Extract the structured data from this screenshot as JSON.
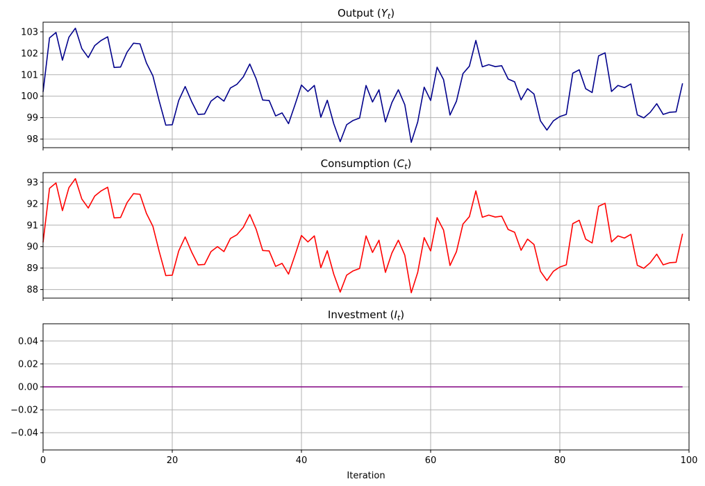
{
  "chart_data": [
    {
      "type": "line",
      "title": "Output",
      "title_var": "Y",
      "title_sub": "t",
      "ylim": [
        97.6,
        103.45
      ],
      "yticks": [
        98,
        99,
        100,
        101,
        102,
        103
      ],
      "ytick_labels": [
        "98",
        "99",
        "100",
        "101",
        "102",
        "103"
      ],
      "series": [
        {
          "name": "Output (Y_t)",
          "color": "#00008b",
          "values": [
            100.2,
            102.72,
            102.97,
            101.68,
            102.75,
            103.17,
            102.22,
            101.8,
            102.36,
            102.6,
            102.77,
            101.34,
            101.36,
            102.05,
            102.47,
            102.44,
            101.55,
            100.95,
            99.75,
            98.65,
            98.67,
            99.8,
            100.45,
            99.75,
            99.15,
            99.17,
            99.77,
            100,
            99.77,
            100.38,
            100.55,
            100.9,
            101.5,
            100.8,
            99.82,
            99.8,
            99.08,
            99.22,
            98.72,
            99.6,
            100.52,
            100.22,
            100.5,
            99.02,
            99.81,
            98.72,
            97.88,
            98.67,
            98.87,
            98.98,
            100.5,
            99.73,
            100.3,
            98.8,
            99.7,
            100.3,
            99.6,
            97.85,
            98.8,
            100.42,
            99.8,
            101.35,
            100.77,
            99.12,
            99.77,
            101.05,
            101.4,
            102.6,
            101.37,
            101.47,
            101.38,
            101.42,
            100.8,
            100.67,
            99.83,
            100.35,
            100.1,
            98.85,
            98.42,
            98.85,
            99.05,
            99.15,
            101.07,
            101.23,
            100.35,
            100.17,
            101.88,
            102.02,
            100.22,
            100.5,
            100.4,
            100.57,
            99.13,
            98.99,
            99.25,
            99.65,
            99.15,
            99.25,
            99.27,
            100.6
          ]
        }
      ]
    },
    {
      "type": "line",
      "title": "Consumption",
      "title_var": "C",
      "title_sub": "t",
      "ylim": [
        87.6,
        93.45
      ],
      "yticks": [
        88,
        89,
        90,
        91,
        92,
        93
      ],
      "ytick_labels": [
        "88",
        "89",
        "90",
        "91",
        "92",
        "93"
      ],
      "series": [
        {
          "name": "Consumption (C_t)",
          "color": "#ff0000",
          "values": [
            90.2,
            92.72,
            92.97,
            91.68,
            92.75,
            93.17,
            92.22,
            91.8,
            92.36,
            92.6,
            92.77,
            91.34,
            91.36,
            92.05,
            92.47,
            92.44,
            91.55,
            90.95,
            89.75,
            88.65,
            88.67,
            89.8,
            90.45,
            89.75,
            89.15,
            89.17,
            89.77,
            90,
            89.77,
            90.38,
            90.55,
            90.9,
            91.5,
            90.8,
            89.82,
            89.8,
            89.08,
            89.22,
            88.72,
            89.6,
            90.52,
            90.22,
            90.5,
            89.02,
            89.81,
            88.72,
            87.88,
            88.67,
            88.87,
            88.98,
            90.5,
            89.73,
            90.3,
            88.8,
            89.7,
            90.3,
            89.6,
            87.85,
            88.8,
            90.42,
            89.8,
            91.35,
            90.77,
            89.12,
            89.77,
            91.05,
            91.4,
            92.6,
            91.37,
            91.47,
            91.38,
            91.42,
            90.8,
            90.67,
            89.83,
            90.35,
            90.1,
            88.85,
            88.42,
            88.85,
            89.05,
            89.15,
            91.07,
            91.23,
            90.35,
            90.17,
            91.88,
            92.02,
            90.22,
            90.5,
            90.4,
            90.57,
            89.13,
            88.99,
            89.25,
            89.65,
            89.15,
            89.25,
            89.27,
            90.6
          ]
        }
      ]
    },
    {
      "type": "line",
      "title": "Investment",
      "title_var": "I",
      "title_sub": "t",
      "ylim": [
        -0.055,
        0.055
      ],
      "yticks": [
        0.04,
        0.02,
        0.0,
        -0.02,
        -0.04
      ],
      "ytick_labels": [
        "0.04",
        "0.02",
        "0.00",
        "−0.02",
        "−0.04"
      ],
      "series": [
        {
          "name": "Investment (I_t)",
          "color": "#800080",
          "values": [
            0,
            0,
            0,
            0,
            0,
            0,
            0,
            0,
            0,
            0,
            0,
            0,
            0,
            0,
            0,
            0,
            0,
            0,
            0,
            0,
            0,
            0,
            0,
            0,
            0,
            0,
            0,
            0,
            0,
            0,
            0,
            0,
            0,
            0,
            0,
            0,
            0,
            0,
            0,
            0,
            0,
            0,
            0,
            0,
            0,
            0,
            0,
            0,
            0,
            0,
            0,
            0,
            0,
            0,
            0,
            0,
            0,
            0,
            0,
            0,
            0,
            0,
            0,
            0,
            0,
            0,
            0,
            0,
            0,
            0,
            0,
            0,
            0,
            0,
            0,
            0,
            0,
            0,
            0,
            0,
            0,
            0,
            0,
            0,
            0,
            0,
            0,
            0,
            0,
            0,
            0,
            0,
            0,
            0,
            0,
            0,
            0,
            0,
            0,
            0
          ]
        }
      ]
    }
  ],
  "shared_x": {
    "xlim": [
      0,
      100
    ],
    "xticks": [
      0,
      20,
      40,
      60,
      80,
      100
    ],
    "xtick_labels": [
      "0",
      "20",
      "40",
      "60",
      "80",
      "100"
    ],
    "xlabel": "Iteration"
  },
  "grid": true
}
